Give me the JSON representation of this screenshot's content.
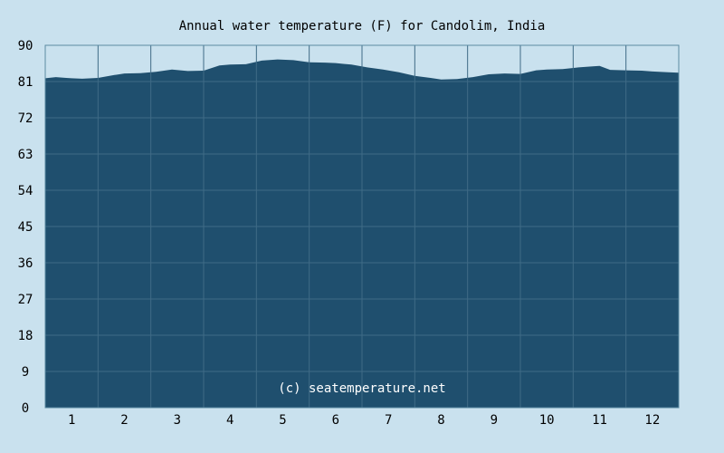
{
  "chart_data": {
    "type": "area",
    "title": "Annual water temperature (F) for Candolim, India",
    "xlabel": "",
    "ylabel": "",
    "categories": [
      "1",
      "2",
      "3",
      "4",
      "5",
      "6",
      "7",
      "8",
      "9",
      "10",
      "11",
      "12"
    ],
    "xlim": [
      0.5,
      12.5
    ],
    "ylim": [
      0,
      90
    ],
    "y_ticks": [
      "0",
      "9",
      "18",
      "27",
      "36",
      "45",
      "54",
      "63",
      "72",
      "81",
      "90"
    ],
    "grid": true,
    "annotation": "(c) seatemperature.net",
    "x": [
      0.5,
      0.7,
      0.9,
      1.0,
      1.2,
      1.5,
      1.8,
      2.0,
      2.3,
      2.6,
      2.9,
      3.2,
      3.5,
      3.8,
      4.0,
      4.3,
      4.6,
      4.9,
      5.2,
      5.5,
      5.8,
      6.0,
      6.3,
      6.6,
      6.9,
      7.2,
      7.5,
      7.8,
      8.0,
      8.3,
      8.6,
      8.9,
      9.2,
      9.5,
      9.8,
      10.0,
      10.3,
      10.6,
      10.9,
      11.0,
      11.2,
      11.5,
      11.8,
      12.0,
      12.3,
      12.5
    ],
    "values": [
      81.8,
      82.1,
      81.9,
      81.8,
      81.7,
      81.9,
      82.6,
      83.0,
      83.1,
      83.4,
      84.0,
      83.6,
      83.7,
      85.0,
      85.2,
      85.3,
      86.2,
      86.5,
      86.3,
      85.8,
      85.7,
      85.6,
      85.2,
      84.5,
      84.0,
      83.3,
      82.4,
      81.9,
      81.5,
      81.6,
      82.1,
      82.8,
      83.0,
      82.9,
      83.8,
      84.0,
      84.1,
      84.5,
      84.8,
      84.9,
      83.9,
      83.8,
      83.7,
      83.5,
      83.3,
      83.2
    ],
    "series": [
      {
        "values_ref": "values"
      }
    ],
    "colors": {
      "background": "#c9e1ee",
      "plot_fill": "#1f4f6e",
      "plot_bg": "#1f4f6e",
      "grid": "#3f6b86",
      "axis": "#5a8aa3"
    }
  }
}
